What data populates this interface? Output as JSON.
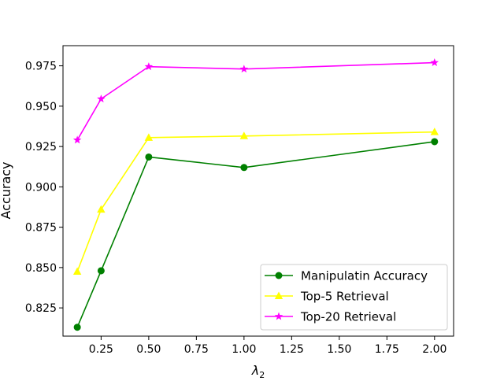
{
  "chart_data": {
    "type": "line",
    "title": "",
    "xlabel_symbol": "λ",
    "xlabel_subscript": "2",
    "ylabel": "Accuracy",
    "x": [
      0.125,
      0.25,
      0.5,
      1.0,
      2.0
    ],
    "xlim": [
      0.05,
      2.1
    ],
    "ylim": [
      0.8075,
      0.9875
    ],
    "x_ticks": [
      0.25,
      0.5,
      0.75,
      1.0,
      1.25,
      1.5,
      1.75,
      2.0
    ],
    "x_tick_labels": [
      "0.25",
      "0.50",
      "0.75",
      "1.00",
      "1.25",
      "1.50",
      "1.75",
      "2.00"
    ],
    "y_ticks": [
      0.825,
      0.85,
      0.875,
      0.9,
      0.925,
      0.95,
      0.975
    ],
    "y_tick_labels": [
      "0.825",
      "0.850",
      "0.875",
      "0.900",
      "0.925",
      "0.950",
      "0.975"
    ],
    "grid": false,
    "legend_position": "lower-right",
    "series": [
      {
        "name": "Manipulatin Accuracy",
        "color": "#008000",
        "marker": "circle",
        "values": [
          0.813,
          0.848,
          0.9185,
          0.912,
          0.928
        ]
      },
      {
        "name": "Top-5 Retrieval",
        "color": "#ffff00",
        "marker": "triangle",
        "values": [
          0.8475,
          0.886,
          0.9305,
          0.9315,
          0.934
        ]
      },
      {
        "name": "Top-20 Retrieval",
        "color": "#ff00ff",
        "marker": "star",
        "values": [
          0.929,
          0.9545,
          0.9745,
          0.973,
          0.977
        ]
      }
    ]
  }
}
